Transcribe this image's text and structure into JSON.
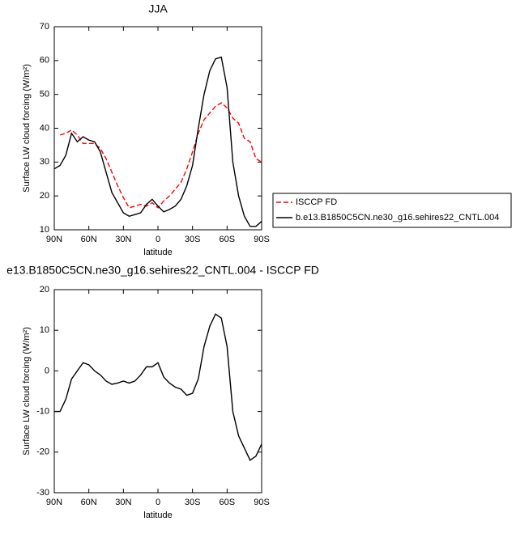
{
  "chart_data": [
    {
      "type": "line",
      "title": "JJA",
      "xlabel": "latitude",
      "ylabel": "Surface LW cloud forcing (W/m²)",
      "x": [
        90,
        85,
        80,
        75,
        70,
        65,
        60,
        55,
        50,
        45,
        40,
        35,
        30,
        25,
        20,
        15,
        10,
        5,
        0,
        -5,
        -10,
        -15,
        -20,
        -25,
        -30,
        -35,
        -40,
        -45,
        -50,
        -55,
        -60,
        -65,
        -70,
        -75,
        -80,
        -85,
        -90
      ],
      "xlim": [
        90,
        -90
      ],
      "xticks": [
        {
          "value": 90,
          "label": "90N"
        },
        {
          "value": 60,
          "label": "60N"
        },
        {
          "value": 30,
          "label": "30N"
        },
        0,
        {
          "value": -30,
          "label": "30S"
        },
        {
          "value": -60,
          "label": "60S"
        },
        {
          "value": -90,
          "label": "90S"
        }
      ],
      "ylim": [
        10,
        70
      ],
      "yticks": [
        10,
        20,
        30,
        40,
        50,
        60,
        70
      ],
      "legend": "right",
      "series": [
        {
          "name": "ISCCP FD",
          "color": "#ff0000",
          "dashed": true,
          "values": [
            null,
            38,
            38.5,
            39.5,
            38,
            35.5,
            35.5,
            35.5,
            34,
            31,
            27,
            23,
            19.5,
            16.5,
            17,
            17.5,
            17,
            18,
            16.5,
            18.5,
            20,
            22,
            24,
            28,
            33,
            38.5,
            42.5,
            44.5,
            46.5,
            47.5,
            46,
            43,
            41.5,
            37,
            36,
            31,
            30
          ]
        },
        {
          "name": "b.e13.B1850C5CN.ne30_g16.sehires22_CNTL.004",
          "color": "#000000",
          "dashed": false,
          "values": [
            28,
            29,
            32,
            38.5,
            36,
            37.5,
            36.5,
            36,
            33,
            27,
            21,
            18,
            15,
            14,
            14.5,
            15,
            17.5,
            19,
            17,
            15.3,
            16,
            17,
            19,
            23,
            29,
            40,
            50,
            57,
            60.5,
            61,
            52,
            30,
            20,
            14,
            11,
            11,
            12.5
          ]
        }
      ]
    },
    {
      "type": "line",
      "title": "e13.B1850C5CN.ne30_g16.sehires22_CNTL.004 - ISCCP FD",
      "xlabel": "latitude",
      "ylabel": "Surface LW cloud forcing (W/m²)",
      "x": [
        90,
        85,
        80,
        75,
        70,
        65,
        60,
        55,
        50,
        45,
        40,
        35,
        30,
        25,
        20,
        15,
        10,
        5,
        0,
        -5,
        -10,
        -15,
        -20,
        -25,
        -30,
        -35,
        -40,
        -45,
        -50,
        -55,
        -60,
        -65,
        -70,
        -75,
        -80,
        -85,
        -90
      ],
      "xlim": [
        90,
        -90
      ],
      "xticks": [
        {
          "value": 90,
          "label": "90N"
        },
        {
          "value": 60,
          "label": "60N"
        },
        {
          "value": 30,
          "label": "30N"
        },
        0,
        {
          "value": -30,
          "label": "30S"
        },
        {
          "value": -60,
          "label": "60S"
        },
        {
          "value": -90,
          "label": "90S"
        }
      ],
      "ylim": [
        -30,
        20
      ],
      "yticks": [
        -30,
        -20,
        -10,
        0,
        10,
        20
      ],
      "series": [
        {
          "color": "#000000",
          "dashed": false,
          "values": [
            -10,
            -10,
            -7,
            -2,
            0,
            2,
            1.5,
            0,
            -1,
            -2.5,
            -3.3,
            -3,
            -2.5,
            -3,
            -2.5,
            -1,
            1,
            1,
            2,
            -1.5,
            -3,
            -4,
            -4.5,
            -6,
            -5.5,
            -2,
            6,
            11,
            14,
            13,
            6,
            -10,
            -16,
            -19,
            -22,
            -21,
            -18
          ]
        }
      ]
    }
  ]
}
